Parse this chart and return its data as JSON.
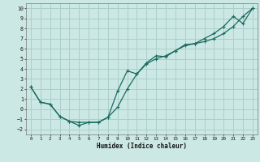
{
  "xlabel": "Humidex (Indice chaleur)",
  "bg_color": "#cce8e4",
  "grid_color": "#aacfcb",
  "line_color": "#1a6b62",
  "xlim": [
    -0.5,
    23.5
  ],
  "ylim": [
    -2.5,
    10.5
  ],
  "xticks": [
    0,
    1,
    2,
    3,
    4,
    5,
    6,
    7,
    8,
    9,
    10,
    11,
    12,
    13,
    14,
    15,
    16,
    17,
    18,
    19,
    20,
    21,
    22,
    23
  ],
  "yticks": [
    -2,
    -1,
    0,
    1,
    2,
    3,
    4,
    5,
    6,
    7,
    8,
    9,
    10
  ],
  "line1_x": [
    0,
    1,
    2,
    3,
    4,
    5,
    6,
    7,
    8,
    9,
    10,
    11,
    12,
    13,
    14,
    15,
    16,
    17,
    18,
    19,
    20,
    21,
    22,
    23
  ],
  "line1_y": [
    2.2,
    0.7,
    0.5,
    -0.7,
    -1.2,
    -1.6,
    -1.3,
    -1.3,
    -0.8,
    0.2,
    2.0,
    3.5,
    4.6,
    5.3,
    5.2,
    5.8,
    6.4,
    6.5,
    7.0,
    7.5,
    8.2,
    9.2,
    8.5,
    10.0
  ],
  "line2_x": [
    0,
    1,
    2,
    3,
    4,
    5,
    6,
    7,
    8,
    9,
    10,
    11,
    12,
    13,
    14,
    15,
    16,
    17,
    18,
    19,
    20,
    21,
    22,
    23
  ],
  "line2_y": [
    2.2,
    0.7,
    0.5,
    -0.7,
    -1.2,
    -1.3,
    -1.3,
    -1.3,
    -0.8,
    1.8,
    3.8,
    3.5,
    4.5,
    5.0,
    5.3,
    5.8,
    6.3,
    6.5,
    6.7,
    7.0,
    7.5,
    8.2,
    9.2,
    10.0
  ],
  "figwidth": 3.2,
  "figheight": 2.0,
  "dpi": 100
}
